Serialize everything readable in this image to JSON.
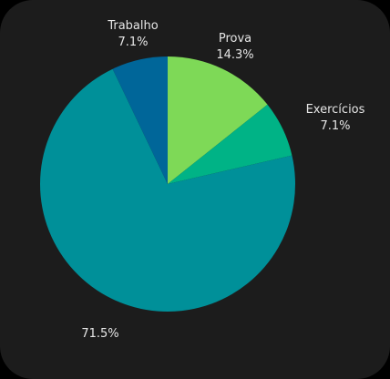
{
  "chart_data": {
    "type": "pie",
    "title": "",
    "slices": [
      {
        "label": "Prova",
        "value": 14.3,
        "value_label": "14.3%",
        "color": "#7ed957"
      },
      {
        "label": "Exercícios",
        "value": 7.1,
        "value_label": "7.1%",
        "color": "#00b386"
      },
      {
        "label": "",
        "value": 71.5,
        "value_label": "71.5%",
        "color": "#009099"
      },
      {
        "label": "Trabalho",
        "value": 7.1,
        "value_label": "7.1%",
        "color": "#006699"
      }
    ],
    "start_angle_deg": 0,
    "direction": "clockwise",
    "legend": "none"
  },
  "colors": {
    "background": "#000000",
    "card": "#1c1c1c",
    "label_text": "#e6e6e6"
  }
}
